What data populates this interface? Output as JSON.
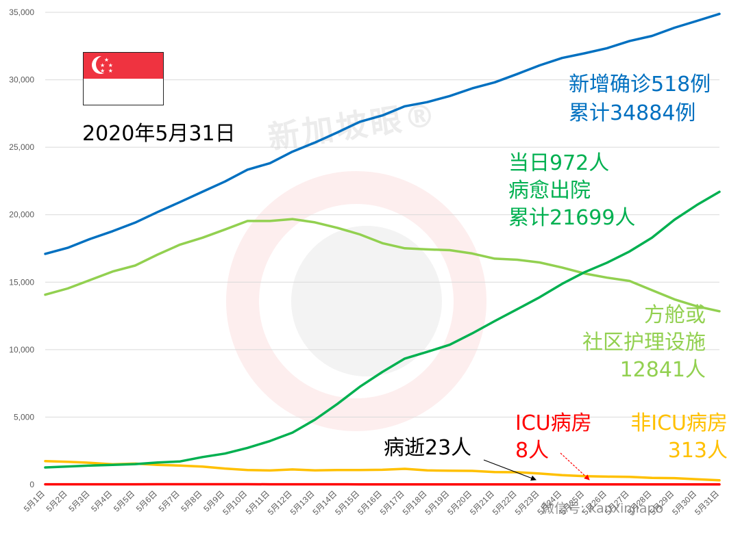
{
  "chart_data": {
    "type": "line",
    "title": "",
    "xlabel": "",
    "ylabel": "",
    "ylim": [
      0,
      35000
    ],
    "yticks": [
      "0",
      "5,000",
      "10,000",
      "15,000",
      "20,000",
      "25,000",
      "30,000",
      "35,000"
    ],
    "grid": true,
    "categories": [
      "5月1日",
      "5月2日",
      "5月3日",
      "5月4日",
      "5月5日",
      "5月6日",
      "5月7日",
      "5月8日",
      "5月9日",
      "5月10日",
      "5月11日",
      "5月12日",
      "5月13日",
      "5月14日",
      "5月15日",
      "5月16日",
      "5月17日",
      "5月18日",
      "5月19日",
      "5月20日",
      "5月21日",
      "5月22日",
      "5月23日",
      "5月24日",
      "5月25日",
      "5月26日",
      "5月27日",
      "5月28日",
      "5月29日",
      "5月30日",
      "5月31日"
    ],
    "series": [
      {
        "key": "confirmed",
        "color": "#0070c0",
        "values": [
          17101,
          17548,
          18205,
          18778,
          19410,
          20198,
          20939,
          21707,
          22460,
          23336,
          23822,
          24671,
          25346,
          26098,
          26891,
          27356,
          28038,
          28343,
          28794,
          29364,
          29812,
          30426,
          31068,
          31616,
          31960,
          32343,
          32876,
          33249,
          33860,
          34366,
          34884
        ]
      },
      {
        "key": "recovered",
        "color": "#00b050",
        "values": [
          1268,
          1339,
          1408,
          1457,
          1519,
          1634,
          1712,
          2040,
          2296,
          2721,
          3225,
          3851,
          4809,
          5973,
          7248,
          8342,
          9340,
          9835,
          10365,
          11207,
          12117,
          12995,
          13882,
          14876,
          15738,
          16444,
          17276,
          18294,
          19631,
          20727,
          21699
        ]
      },
      {
        "key": "community",
        "color": "#92d050",
        "values": [
          14070,
          14533,
          15160,
          15790,
          16231,
          17042,
          17783,
          18295,
          18905,
          19532,
          19533,
          19678,
          19433,
          19026,
          18539,
          17890,
          17508,
          17428,
          17374,
          17123,
          16745,
          16665,
          16459,
          16083,
          15644,
          15332,
          15090,
          14405,
          13728,
          13211,
          12841
        ]
      },
      {
        "key": "non_icu",
        "color": "#ffc000",
        "values": [
          1742,
          1686,
          1615,
          1500,
          1551,
          1461,
          1406,
          1336,
          1185,
          1079,
          1045,
          1120,
          1048,
          1075,
          1079,
          1098,
          1168,
          1049,
          1027,
          1012,
          929,
          913,
          816,
          697,
          620,
          589,
          570,
          495,
          475,
          398,
          313
        ]
      },
      {
        "key": "icu",
        "color": "#ff0000",
        "values": [
          21,
          21,
          20,
          20,
          20,
          23,
          24,
          25,
          24,
          23,
          22,
          20,
          20,
          19,
          16,
          15,
          14,
          14,
          13,
          12,
          11,
          11,
          10,
          10,
          10,
          10,
          10,
          9,
          9,
          8,
          8
        ]
      },
      {
        "key": "deaths",
        "color": "#c00000",
        "values": [
          18,
          18,
          18,
          18,
          18,
          18,
          18,
          20,
          20,
          20,
          20,
          20,
          21,
          21,
          21,
          21,
          21,
          21,
          22,
          22,
          22,
          22,
          23,
          23,
          23,
          23,
          23,
          23,
          23,
          23,
          23
        ]
      }
    ],
    "annotations": {
      "confirmed": [
        "新增确诊518例",
        "累计34884例"
      ],
      "recovered": [
        "当日972人",
        "病愈出院",
        "累计21699人"
      ],
      "community": [
        "方舱或",
        "社区护理设施",
        "12841人"
      ],
      "icu": [
        "ICU病房",
        "8人"
      ],
      "non_icu": [
        "非ICU病房",
        "313人"
      ],
      "deaths": [
        "病逝23人"
      ]
    }
  },
  "header": {
    "date_label": "2020年5月31日",
    "watermark_text": "新加坡眼®",
    "wechat_text": "微信号: kanxinjiapo"
  },
  "flag": {
    "name": "Singapore flag",
    "top_color": "#ef3340",
    "bottom_color": "#ffffff"
  }
}
